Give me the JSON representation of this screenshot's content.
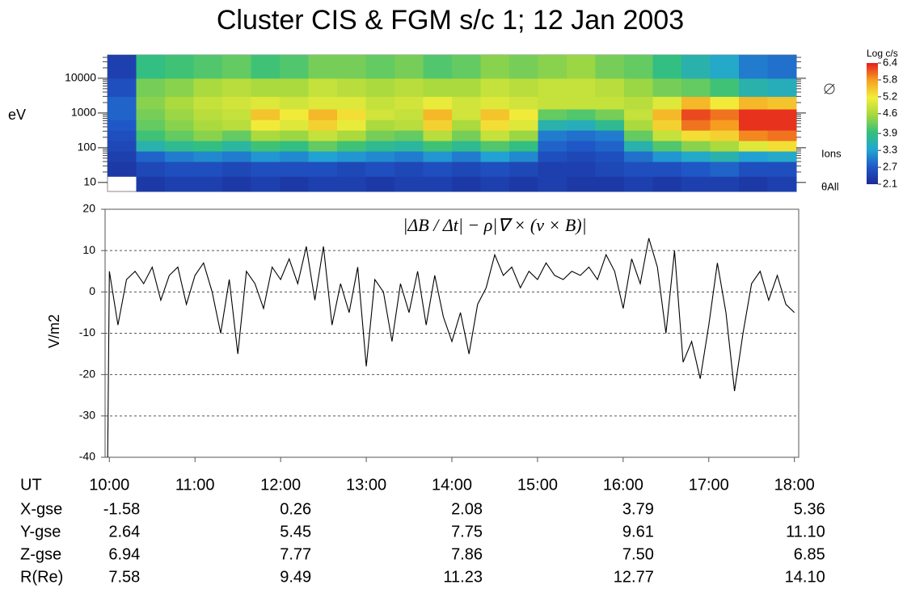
{
  "title": "Cluster CIS & FGM  s/c 1; 12 Jan 2003",
  "chart_data": [
    {
      "type": "heatmap",
      "ylabel": "eV",
      "log_y": true,
      "y_bins": [
        5.5,
        15,
        40,
        80,
        160,
        320,
        640,
        1300,
        3000,
        10000,
        47000
      ],
      "ylim": [
        5.5,
        47000
      ],
      "yticks": [
        10,
        100,
        1000,
        10000
      ],
      "z": [
        [
          null,
          2.3,
          2.4,
          2.4,
          2.3,
          2.4,
          2.3,
          2.4,
          2.4,
          2.3,
          2.4,
          2.4,
          2.3,
          2.4,
          2.3,
          2.4,
          2.3,
          2.3,
          2.4,
          2.3,
          2.4,
          2.4,
          2.3,
          2.4
        ],
        [
          2.3,
          2.5,
          2.6,
          2.6,
          2.5,
          2.6,
          2.6,
          2.6,
          2.5,
          2.6,
          2.5,
          2.6,
          2.5,
          2.6,
          2.5,
          2.4,
          2.4,
          2.5,
          2.6,
          2.6,
          2.7,
          2.8,
          2.6,
          2.6
        ],
        [
          2.4,
          2.8,
          3.0,
          3.1,
          3.0,
          3.2,
          3.1,
          3.3,
          3.2,
          3.1,
          3.0,
          3.2,
          3.0,
          3.3,
          3.1,
          2.6,
          2.5,
          2.6,
          2.9,
          3.2,
          3.4,
          3.6,
          3.3,
          3.4
        ],
        [
          2.5,
          3.6,
          3.8,
          3.9,
          3.7,
          4.0,
          3.9,
          4.2,
          4.0,
          3.8,
          3.7,
          4.0,
          3.8,
          4.1,
          3.9,
          2.8,
          2.7,
          2.8,
          3.6,
          4.1,
          4.4,
          4.6,
          5.0,
          5.3
        ],
        [
          2.6,
          4.0,
          4.2,
          4.4,
          4.2,
          4.6,
          4.5,
          4.8,
          4.6,
          4.3,
          4.2,
          4.7,
          4.3,
          4.8,
          4.5,
          3.0,
          2.9,
          3.0,
          4.2,
          4.8,
          5.3,
          5.4,
          5.9,
          6.0
        ],
        [
          2.7,
          4.2,
          4.4,
          4.6,
          4.7,
          5.2,
          5.0,
          5.4,
          5.1,
          4.6,
          4.7,
          5.4,
          4.6,
          5.3,
          5.0,
          3.6,
          3.5,
          3.8,
          4.6,
          5.4,
          6.0,
          5.8,
          6.3,
          6.3
        ],
        [
          2.8,
          4.3,
          4.5,
          4.7,
          4.8,
          5.5,
          5.2,
          5.6,
          5.3,
          4.9,
          4.8,
          5.6,
          4.9,
          5.5,
          5.2,
          4.2,
          4.1,
          4.3,
          4.8,
          5.6,
          6.2,
          6.0,
          6.3,
          6.3
        ],
        [
          2.8,
          4.4,
          4.6,
          4.8,
          4.9,
          5.0,
          4.9,
          5.0,
          5.0,
          4.8,
          4.9,
          5.1,
          4.9,
          5.0,
          4.9,
          4.8,
          4.8,
          4.8,
          4.7,
          5.0,
          5.6,
          5.2,
          5.6,
          5.5
        ],
        [
          2.6,
          4.3,
          4.4,
          4.6,
          4.7,
          4.6,
          4.6,
          4.8,
          4.7,
          4.6,
          4.7,
          4.6,
          4.6,
          4.8,
          4.7,
          4.8,
          4.8,
          4.7,
          4.5,
          4.3,
          4.2,
          4.0,
          3.6,
          3.5
        ],
        [
          2.4,
          3.9,
          4.0,
          4.1,
          4.2,
          4.0,
          4.1,
          4.3,
          4.3,
          4.2,
          4.3,
          4.1,
          4.2,
          4.4,
          4.3,
          4.4,
          4.5,
          4.3,
          4.2,
          3.9,
          3.6,
          3.4,
          3.0,
          2.9
        ]
      ],
      "colorbar_title": "Log c/s",
      "clim": [
        2.1,
        6.4
      ],
      "colorbar_ticks": [
        2.1,
        2.7,
        3.3,
        3.9,
        4.6,
        5.2,
        5.8,
        6.4
      ],
      "colormap": [
        "#1c2a96",
        "#2058c8",
        "#22a6d2",
        "#34c07c",
        "#a6d83e",
        "#f2ee3a",
        "#f6a020",
        "#e41e1e"
      ],
      "annotations": [
        "Ions",
        "θAll"
      ]
    },
    {
      "type": "line",
      "annotation": "|ΔB / Δt| − ρ|∇ × (v × B)|",
      "ylabel": "V/m2",
      "color": "#000000",
      "grid": true,
      "xlim": [
        9.95,
        18.05
      ],
      "ylim": [
        -40,
        20
      ],
      "yticks": [
        -40,
        -30,
        -20,
        -10,
        0,
        10,
        20
      ],
      "xticks": [
        {
          "value": 10,
          "label": "10:00"
        },
        {
          "value": 11,
          "label": "11:00"
        },
        {
          "value": 12,
          "label": "12:00"
        },
        {
          "value": 13,
          "label": "13:00"
        },
        {
          "value": 14,
          "label": "14:00"
        },
        {
          "value": 15,
          "label": "15:00"
        },
        {
          "value": 16,
          "label": "16:00"
        },
        {
          "value": 17,
          "label": "17:00"
        },
        {
          "value": 18,
          "label": "18:00"
        }
      ],
      "x": [
        9.98,
        10.0,
        10.1,
        10.2,
        10.3,
        10.4,
        10.5,
        10.6,
        10.7,
        10.8,
        10.9,
        11.0,
        11.1,
        11.2,
        11.3,
        11.4,
        11.5,
        11.6,
        11.7,
        11.8,
        11.9,
        12.0,
        12.1,
        12.2,
        12.3,
        12.4,
        12.5,
        12.6,
        12.7,
        12.8,
        12.9,
        13.0,
        13.1,
        13.2,
        13.3,
        13.4,
        13.5,
        13.6,
        13.7,
        13.8,
        13.9,
        14.0,
        14.1,
        14.2,
        14.3,
        14.4,
        14.5,
        14.6,
        14.7,
        14.8,
        14.9,
        15.0,
        15.1,
        15.2,
        15.3,
        15.4,
        15.5,
        15.6,
        15.7,
        15.8,
        15.9,
        16.0,
        16.1,
        16.2,
        16.3,
        16.4,
        16.5,
        16.6,
        16.7,
        16.8,
        16.9,
        17.0,
        17.1,
        17.2,
        17.3,
        17.4,
        17.5,
        17.6,
        17.7,
        17.8,
        17.9,
        18.0
      ],
      "values": [
        -40,
        5,
        -8,
        3,
        5,
        2,
        6,
        -2,
        4,
        6,
        -3,
        4,
        7,
        0,
        -10,
        3,
        -15,
        5,
        2,
        -4,
        6,
        3,
        8,
        2,
        11,
        -2,
        11,
        -8,
        2,
        -5,
        6,
        -18,
        3,
        0,
        -12,
        2,
        -5,
        5,
        -8,
        4,
        -6,
        -12,
        -5,
        -15,
        -3,
        1,
        9,
        4,
        6,
        1,
        5,
        3,
        7,
        4,
        3,
        5,
        4,
        6,
        3,
        9,
        5,
        -4,
        8,
        2,
        13,
        6,
        -10,
        10,
        -17,
        -12,
        -21,
        -8,
        7,
        -5,
        -24,
        -10,
        2,
        5,
        -2,
        4,
        -3,
        -5
      ]
    }
  ],
  "ephemeris": {
    "ut_label": "UT",
    "rows": [
      [
        "X-gse",
        "-1.58",
        "0.26",
        "2.08",
        "3.79",
        "5.36"
      ],
      [
        "Y-gse",
        "2.64",
        "5.45",
        "7.75",
        "9.61",
        "11.10"
      ],
      [
        "Z-gse",
        "6.94",
        "7.77",
        "7.86",
        "7.50",
        "6.85"
      ],
      [
        "R(Re)",
        "7.58",
        "9.49",
        "11.23",
        "12.77",
        "14.10"
      ]
    ]
  }
}
